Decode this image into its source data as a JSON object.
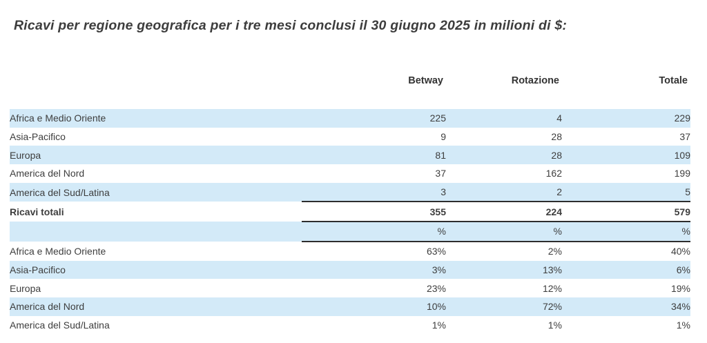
{
  "title": "Ricavi per regione geografica per i tre mesi conclusi il 30 giugno 2025 in milioni di $:",
  "table": {
    "headers": {
      "betway": "Betway",
      "rotazione": "Rotazione",
      "totale": "Totale"
    },
    "abs_rows": [
      {
        "label": "Africa e Medio Oriente",
        "betway": "225",
        "rotazione": "4",
        "totale": "229"
      },
      {
        "label": "Asia-Pacifico",
        "betway": "9",
        "rotazione": "28",
        "totale": "37"
      },
      {
        "label": "Europa",
        "betway": "81",
        "rotazione": "28",
        "totale": "109"
      },
      {
        "label": "America del Nord",
        "betway": "37",
        "rotazione": "162",
        "totale": "199"
      },
      {
        "label": "America del Sud/Latina",
        "betway": "3",
        "rotazione": "2",
        "totale": "5"
      }
    ],
    "total_row": {
      "label": "Ricavi totali",
      "betway": "355",
      "rotazione": "224",
      "totale": "579"
    },
    "percent_header_row": {
      "label": "",
      "betway": "%",
      "rotazione": "%",
      "totale": "%"
    },
    "pct_rows": [
      {
        "label": "Africa e Medio Oriente",
        "betway": "63%",
        "rotazione": "2%",
        "totale": "40%"
      },
      {
        "label": "Asia-Pacifico",
        "betway": "3%",
        "rotazione": "13%",
        "totale": "6%"
      },
      {
        "label": "Europa",
        "betway": "23%",
        "rotazione": "12%",
        "totale": "19%"
      },
      {
        "label": "America del Nord",
        "betway": "10%",
        "rotazione": "72%",
        "totale": "34%"
      },
      {
        "label": "America del Sud/Latina",
        "betway": "1%",
        "rotazione": "1%",
        "totale": "1%"
      }
    ]
  },
  "colors": {
    "row_stripe": "#d3eaf8",
    "text": "#3d3d3d",
    "rule": "#2d2d2d",
    "bg": "#ffffff"
  }
}
